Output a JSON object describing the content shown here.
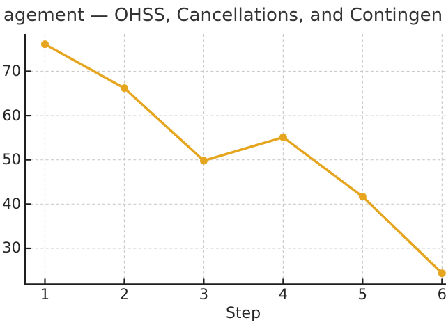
{
  "chart_data": {
    "type": "line",
    "title_visible": "agement — OHSS, Cancellations, and Contingen",
    "xlabel": "Step",
    "ylabel": "",
    "x": [
      1,
      2,
      3,
      4,
      5,
      6
    ],
    "values": [
      76.1,
      66.2,
      49.8,
      55.1,
      41.7,
      24.4
    ],
    "xticks": [
      "1",
      "2",
      "3",
      "4",
      "5",
      "6"
    ],
    "yticks": [
      "30",
      "40",
      "50",
      "60",
      "70"
    ],
    "ytick_values": [
      30,
      40,
      50,
      60,
      70
    ],
    "xtick_values": [
      1,
      2,
      3,
      4,
      5,
      6
    ],
    "xlim": [
      0.75,
      6.05
    ],
    "ylim": [
      21.9,
      78.4
    ],
    "grid": true,
    "grid_style": "dashed",
    "legend": false,
    "marker": "circle",
    "line_color": "#e6a51e",
    "grid_color": "#cbcbcb",
    "axis_color": "#1f1f1f",
    "tick_text_color": "#262626",
    "title_color": "#333333"
  }
}
